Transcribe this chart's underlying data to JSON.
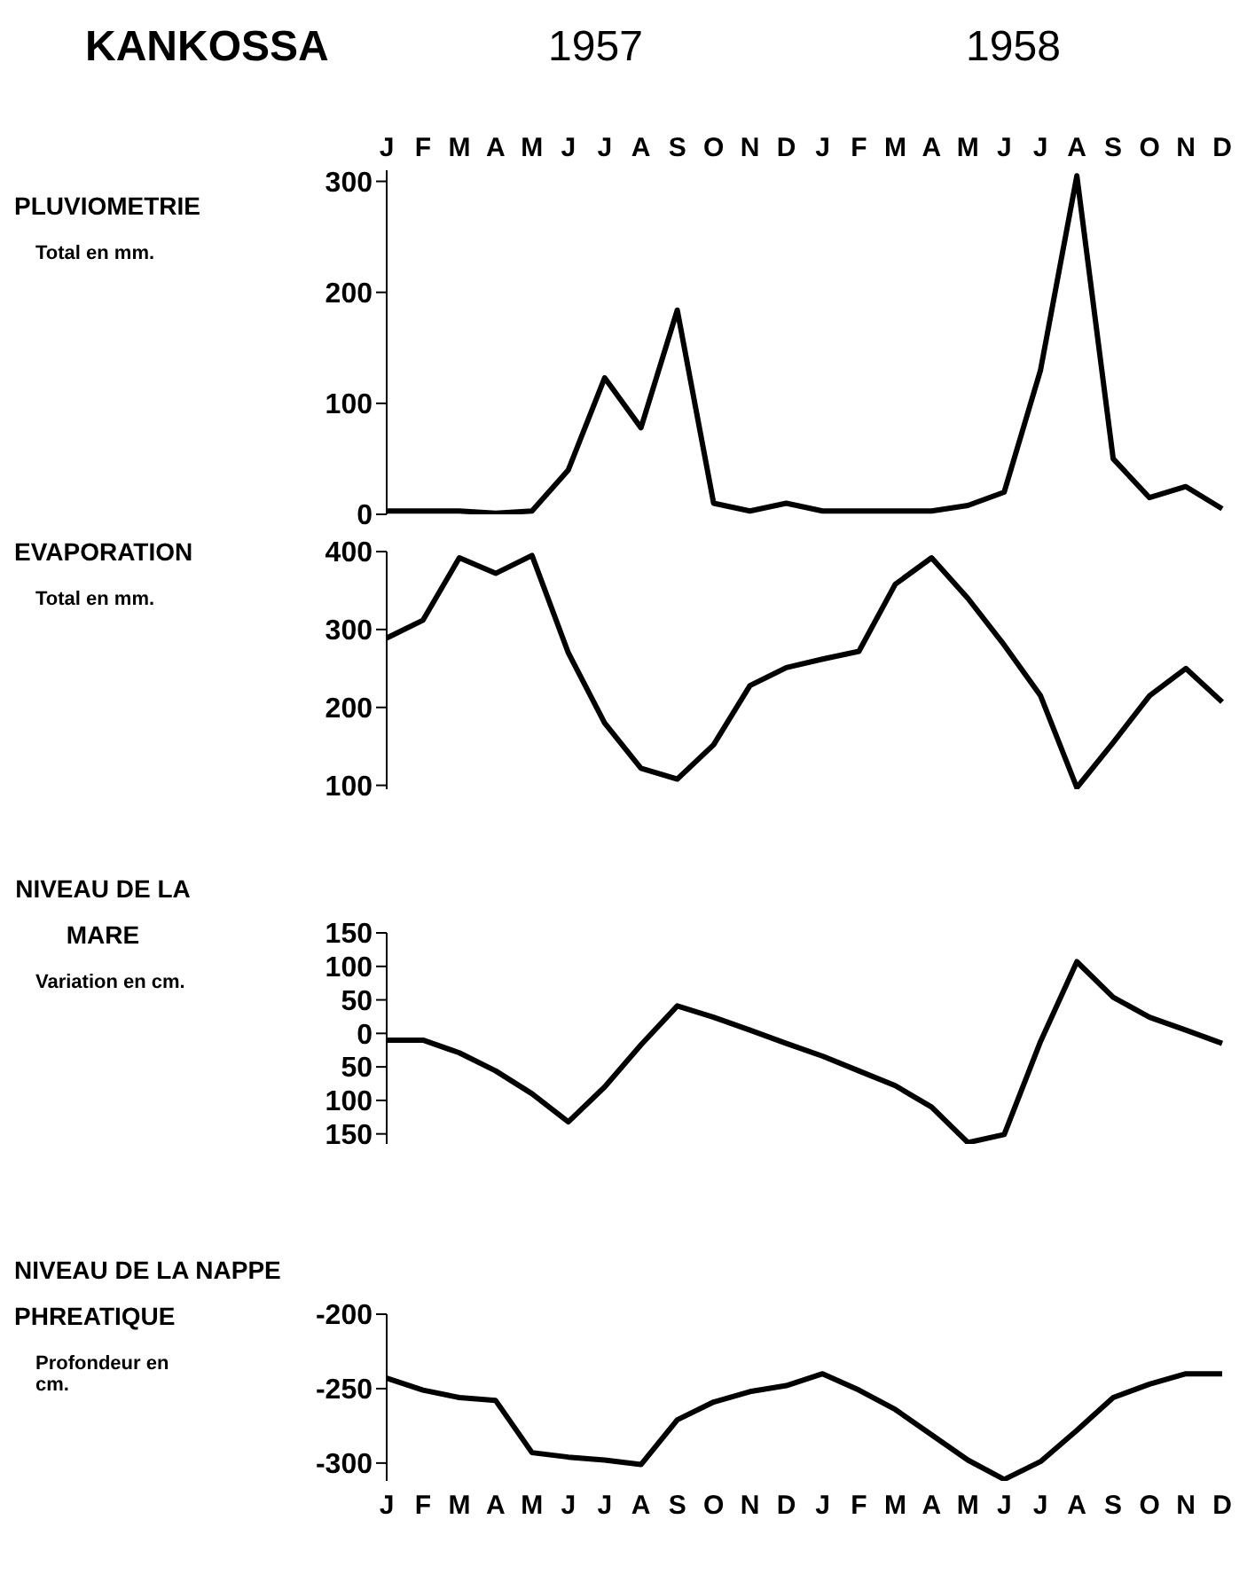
{
  "chart_data": [
    {
      "type": "line",
      "title": "KANKOSSA",
      "subtitle": "PLUVIOMETRIE",
      "ylabel": "Total en mm.",
      "annotations": [
        "1957",
        "1958"
      ],
      "categories": [
        "J",
        "F",
        "M",
        "A",
        "M",
        "J",
        "J",
        "A",
        "S",
        "O",
        "N",
        "D",
        "J",
        "F",
        "M",
        "A",
        "M",
        "J",
        "J",
        "A",
        "S",
        "O",
        "N",
        "D"
      ],
      "values": [
        3,
        3,
        3,
        1,
        3,
        40,
        123,
        78,
        184,
        10,
        3,
        10,
        3,
        3,
        3,
        3,
        8,
        20,
        130,
        305,
        50,
        15,
        25,
        5
      ],
      "color": "#000000",
      "marker": "none",
      "ylim": [
        0,
        310
      ],
      "yticks": [
        0,
        100,
        200,
        300
      ]
    },
    {
      "type": "line",
      "title": "EVAPORATION",
      "ylabel": "Total en mm.",
      "categories": [
        null,
        null,
        null,
        null,
        null,
        null,
        null,
        null,
        null,
        null,
        null,
        null,
        null,
        null,
        null,
        null,
        null,
        null,
        null,
        null,
        null,
        null,
        null,
        null
      ],
      "values": [
        289,
        312,
        392,
        372,
        395,
        270,
        180,
        122,
        108,
        152,
        228,
        251,
        262,
        272,
        358,
        392,
        340,
        280,
        215,
        97,
        155,
        215,
        250,
        207
      ],
      "color": "#000000",
      "marker": "none",
      "ylim": [
        95,
        400
      ],
      "yticks": [
        100,
        200,
        300,
        400
      ],
      "tick_labels": "y"
    },
    {
      "type": "line",
      "title": "NIVEAU DE LA MARE",
      "ylabel": "Variation en cm.",
      "categories": [
        null,
        null,
        null,
        null,
        null,
        null,
        null,
        null,
        null,
        null,
        null,
        null,
        null,
        null,
        null,
        null,
        null,
        null,
        null,
        null,
        null,
        null,
        null,
        null
      ],
      "values": [
        -10,
        -10,
        -29,
        -56,
        -90,
        -132,
        -80,
        -17,
        41,
        24,
        5,
        -15,
        -34,
        -56,
        -78,
        -110,
        -163,
        -151,
        -12,
        107,
        54,
        24,
        5,
        -15
      ],
      "color": "#000000",
      "marker": "none",
      "ylim": [
        -165,
        150
      ],
      "yticks": [
        150,
        100,
        50,
        0,
        {
          "value": -50,
          "label": "50"
        },
        {
          "value": -100,
          "label": "100"
        },
        {
          "value": -150,
          "label": "150"
        }
      ],
      "tick_labels": "y"
    },
    {
      "type": "line",
      "title": "NIVEAU DE LA NAPPE PHREATIQUE",
      "ylabel": "Profondeur en cm.",
      "categories": [
        "J",
        "F",
        "M",
        "A",
        "M",
        "J",
        "J",
        "A",
        "S",
        "O",
        "N",
        "D",
        "J",
        "F",
        "M",
        "A",
        "M",
        "J",
        "J",
        "A",
        "S",
        "O",
        "N",
        "D"
      ],
      "values": [
        -243,
        -251,
        -256,
        -258,
        -293,
        -296,
        -298,
        -301,
        -271,
        -259,
        -252,
        -248,
        -240,
        -251,
        -264,
        -281,
        -298,
        -311,
        -299,
        -278,
        -256,
        -247,
        -240,
        -240
      ],
      "color": "#000000",
      "marker": "none",
      "ylim": [
        -312,
        -200
      ],
      "yticks": [
        -300,
        -250,
        -200
      ]
    }
  ]
}
